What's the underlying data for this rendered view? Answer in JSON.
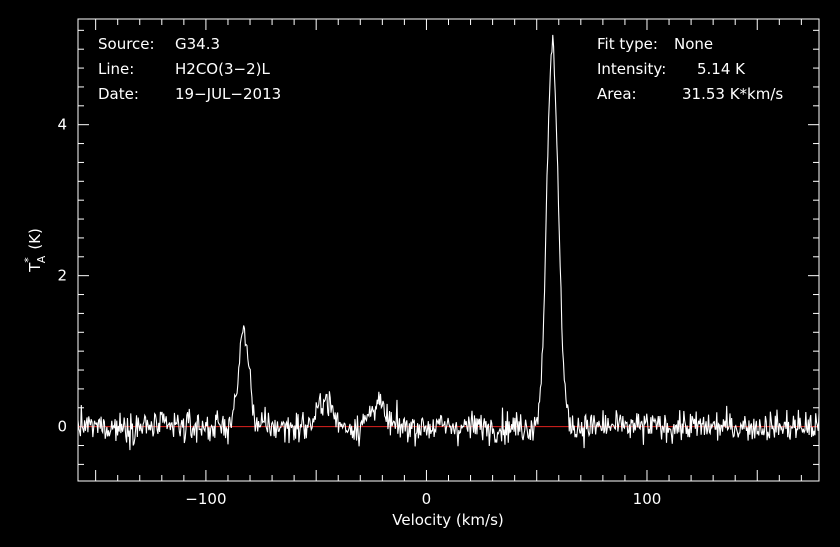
{
  "header": {
    "left": [
      {
        "key": "Source:",
        "value": "G34.3"
      },
      {
        "key": "Line:",
        "value": "H2CO(3−2)L"
      },
      {
        "key": "Date:",
        "value": "19−JUL−2013"
      }
    ],
    "right": [
      {
        "key": "Fit type:",
        "value": "None"
      },
      {
        "key": "Intensity:",
        "value": "5.14 K"
      },
      {
        "key": "Area:",
        "value": "31.53 K*km/s"
      }
    ]
  },
  "chart_data": {
    "type": "line",
    "xlabel": "Velocity (km/s)",
    "ylabel": "T_A^* (K)",
    "ylabel_main": "T",
    "ylabel_sub": "A",
    "ylabel_sup": "*",
    "ylabel_unit": "(K)",
    "xlim": [
      -158,
      178
    ],
    "ylim": [
      -0.72,
      5.4
    ],
    "xticks": [
      {
        "value": -100,
        "label": "−100"
      },
      {
        "value": 0,
        "label": "0"
      },
      {
        "value": 100,
        "label": "100"
      }
    ],
    "yticks": [
      {
        "value": 0,
        "label": "0"
      },
      {
        "value": 2,
        "label": "2"
      },
      {
        "value": 4,
        "label": "4"
      }
    ],
    "grid": false,
    "baseline": 0,
    "colors": {
      "spectrum": "#ffffff",
      "baseline": "#e0221f",
      "axes": "#ffffff",
      "background": "#000000"
    },
    "noise_rms": 0.1,
    "peaks": [
      {
        "center": 57.2,
        "amplitude": 5.05,
        "width_sigma": 2.6
      },
      {
        "center": -82.8,
        "amplitude": 1.25,
        "width_sigma": 2.4
      },
      {
        "center": -46.0,
        "amplitude": 0.38,
        "width_sigma": 3.0
      },
      {
        "center": -22.5,
        "amplitude": 0.32,
        "width_sigma": 3.0
      }
    ],
    "series": [
      {
        "type": "spectrum",
        "x_start": -158,
        "x_end": 178,
        "points": 900
      },
      {
        "type": "baseline",
        "value": 0
      }
    ]
  }
}
